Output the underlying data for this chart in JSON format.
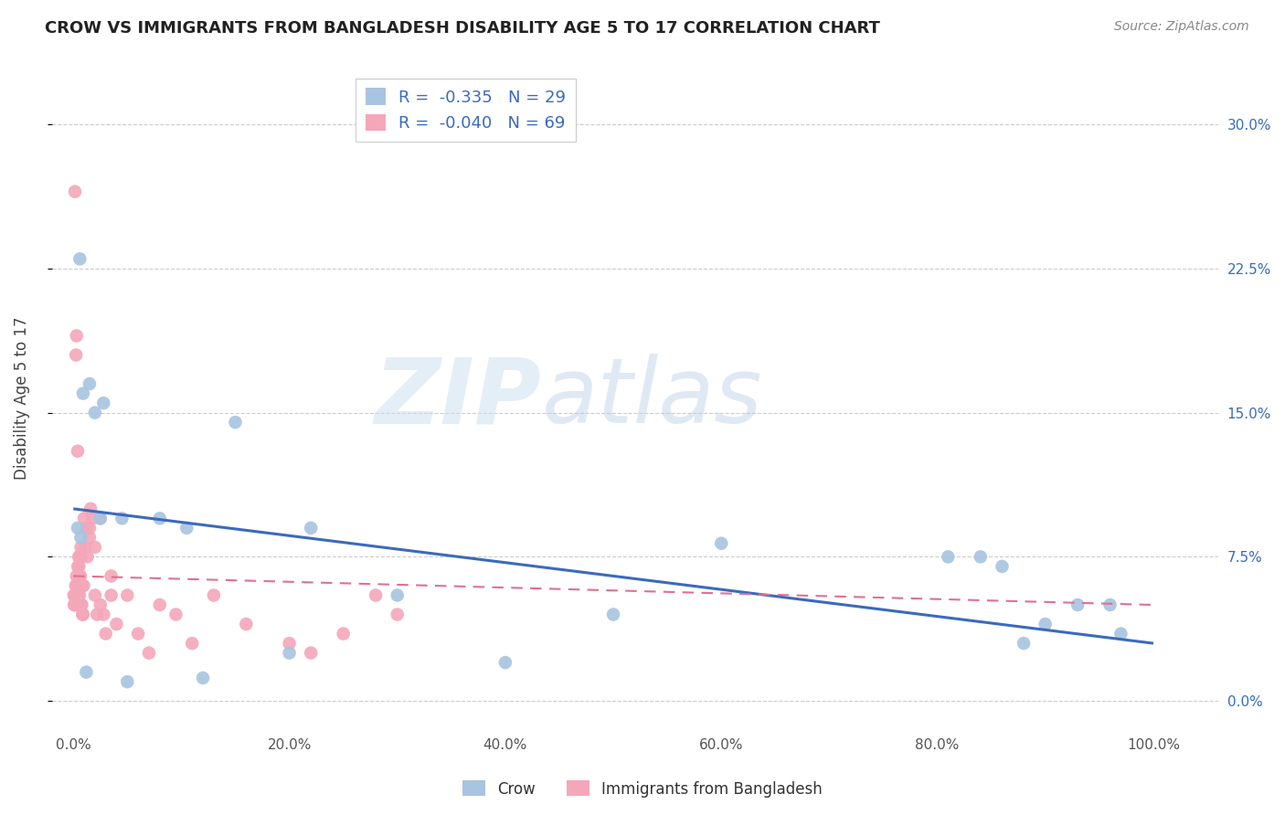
{
  "title": "CROW VS IMMIGRANTS FROM BANGLADESH DISABILITY AGE 5 TO 17 CORRELATION CHART",
  "source": "Source: ZipAtlas.com",
  "ylabel": "Disability Age 5 to 17",
  "ytick_values": [
    0.0,
    7.5,
    15.0,
    22.5,
    30.0
  ],
  "xtick_values": [
    0.0,
    20.0,
    40.0,
    60.0,
    80.0,
    100.0
  ],
  "xlim": [
    -2,
    106
  ],
  "ylim": [
    -1.5,
    33
  ],
  "legend_blue_label": "R =  -0.335   N = 29",
  "legend_pink_label": "R =  -0.040   N = 69",
  "crow_color": "#a8c4e0",
  "bangladesh_color": "#f4a7b9",
  "trendline_blue_color": "#3a6abf",
  "trendline_pink_color": "#e07090",
  "watermark1": "ZIP",
  "watermark2": "atlas",
  "crow_x": [
    0.4,
    0.6,
    0.7,
    0.9,
    1.5,
    2.0,
    2.5,
    2.8,
    4.5,
    8.0,
    10.5,
    12.0,
    15.0,
    20.0,
    22.0,
    30.0,
    40.0,
    50.0,
    60.0,
    81.0,
    84.0,
    86.0,
    90.0,
    93.0,
    96.0,
    97.0,
    88.0,
    5.0,
    1.2
  ],
  "crow_y": [
    9.0,
    23.0,
    8.5,
    16.0,
    16.5,
    15.0,
    9.5,
    15.5,
    9.5,
    9.5,
    9.0,
    1.2,
    14.5,
    2.5,
    9.0,
    5.5,
    2.0,
    4.5,
    8.2,
    7.5,
    7.5,
    7.0,
    4.0,
    5.0,
    5.0,
    3.5,
    3.0,
    1.0,
    1.5
  ],
  "bangladesh_x": [
    0.05,
    0.08,
    0.1,
    0.12,
    0.15,
    0.18,
    0.2,
    0.22,
    0.25,
    0.28,
    0.3,
    0.32,
    0.35,
    0.38,
    0.4,
    0.42,
    0.45,
    0.48,
    0.5,
    0.52,
    0.55,
    0.58,
    0.6,
    0.62,
    0.65,
    0.68,
    0.7,
    0.72,
    0.75,
    0.78,
    0.8,
    0.85,
    0.9,
    0.95,
    1.0,
    1.1,
    1.2,
    1.3,
    1.5,
    1.6,
    1.8,
    2.0,
    2.2,
    2.5,
    2.8,
    3.0,
    3.5,
    4.0,
    5.0,
    6.0,
    7.0,
    8.0,
    9.5,
    11.0,
    13.0,
    16.0,
    20.0,
    22.0,
    25.0,
    28.0,
    30.0,
    0.3,
    0.4,
    0.15,
    0.25,
    1.5,
    2.0,
    2.5,
    3.5
  ],
  "bangladesh_y": [
    5.5,
    5.0,
    5.5,
    5.0,
    5.5,
    5.0,
    5.5,
    6.0,
    6.0,
    5.5,
    6.5,
    5.5,
    5.5,
    5.0,
    5.5,
    7.0,
    6.0,
    6.0,
    7.5,
    7.0,
    6.0,
    5.5,
    7.5,
    6.5,
    6.5,
    7.5,
    8.0,
    6.0,
    5.0,
    5.0,
    6.0,
    4.5,
    4.5,
    6.0,
    9.5,
    8.0,
    9.0,
    7.5,
    9.0,
    10.0,
    9.5,
    5.5,
    4.5,
    5.0,
    4.5,
    3.5,
    6.5,
    4.0,
    5.5,
    3.5,
    2.5,
    5.0,
    4.5,
    3.0,
    5.5,
    4.0,
    3.0,
    2.5,
    3.5,
    5.5,
    4.5,
    19.0,
    13.0,
    26.5,
    18.0,
    8.5,
    8.0,
    9.5,
    5.5
  ]
}
